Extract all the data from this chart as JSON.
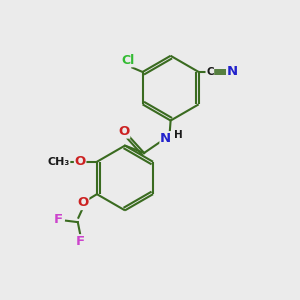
{
  "bg_color": "#ebebeb",
  "bond_color": "#3a6b20",
  "bond_width": 1.5,
  "atom_colors": {
    "Cl": "#33bb33",
    "N": "#2222cc",
    "O": "#cc2222",
    "F": "#cc44cc",
    "C": "#1a1a1a",
    "H": "#1a1a1a"
  },
  "font_size": 8.5
}
